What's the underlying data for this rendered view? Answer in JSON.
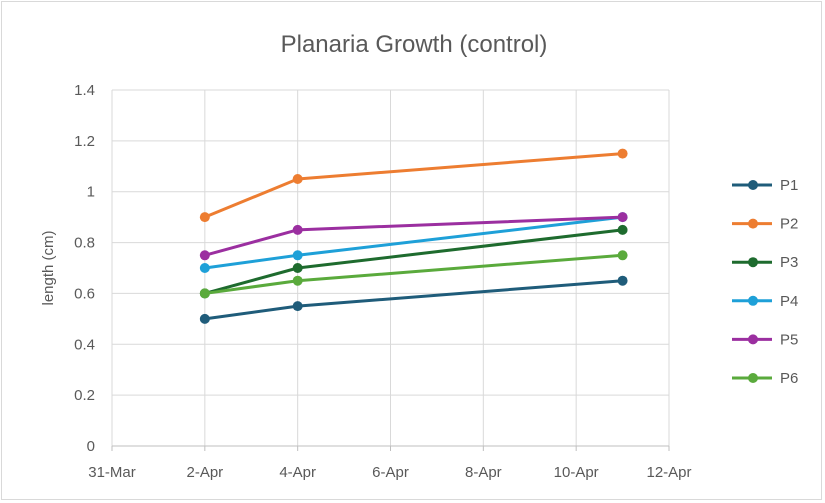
{
  "chart_data": {
    "type": "line",
    "title": "Planaria Growth (control)",
    "xlabel": "",
    "ylabel": "length (cm)",
    "ylim": [
      0,
      1.4
    ],
    "yticks": [
      "0",
      "0.2",
      "0.4",
      "0.6",
      "0.8",
      "1",
      "1.2",
      "1.4"
    ],
    "ytick_values": [
      0,
      0.2,
      0.4,
      0.6,
      0.8,
      1.0,
      1.2,
      1.4
    ],
    "xlim_days": [
      0,
      12
    ],
    "xticks": [
      "31-Mar",
      "2-Apr",
      "4-Apr",
      "6-Apr",
      "8-Apr",
      "10-Apr",
      "12-Apr"
    ],
    "xtick_days": [
      0,
      2,
      4,
      6,
      8,
      10,
      12
    ],
    "x": [
      "2-Apr",
      "4-Apr",
      "11-Apr"
    ],
    "x_days": [
      2,
      4,
      11
    ],
    "grid": true,
    "legend_position": "right",
    "series": [
      {
        "name": "P1",
        "values": [
          0.5,
          0.55,
          0.65
        ],
        "color": "#1f5c7a"
      },
      {
        "name": "P2",
        "values": [
          0.9,
          1.05,
          1.15
        ],
        "color": "#ed7d31"
      },
      {
        "name": "P3",
        "values": [
          0.6,
          0.7,
          0.85
        ],
        "color": "#1e6b2e"
      },
      {
        "name": "P4",
        "values": [
          0.7,
          0.75,
          0.9
        ],
        "color": "#1ea0d8"
      },
      {
        "name": "P5",
        "values": [
          0.75,
          0.85,
          0.9
        ],
        "color": "#9b2fa0"
      },
      {
        "name": "P6",
        "values": [
          0.6,
          0.65,
          0.75
        ],
        "color": "#5aaa3c"
      }
    ]
  }
}
